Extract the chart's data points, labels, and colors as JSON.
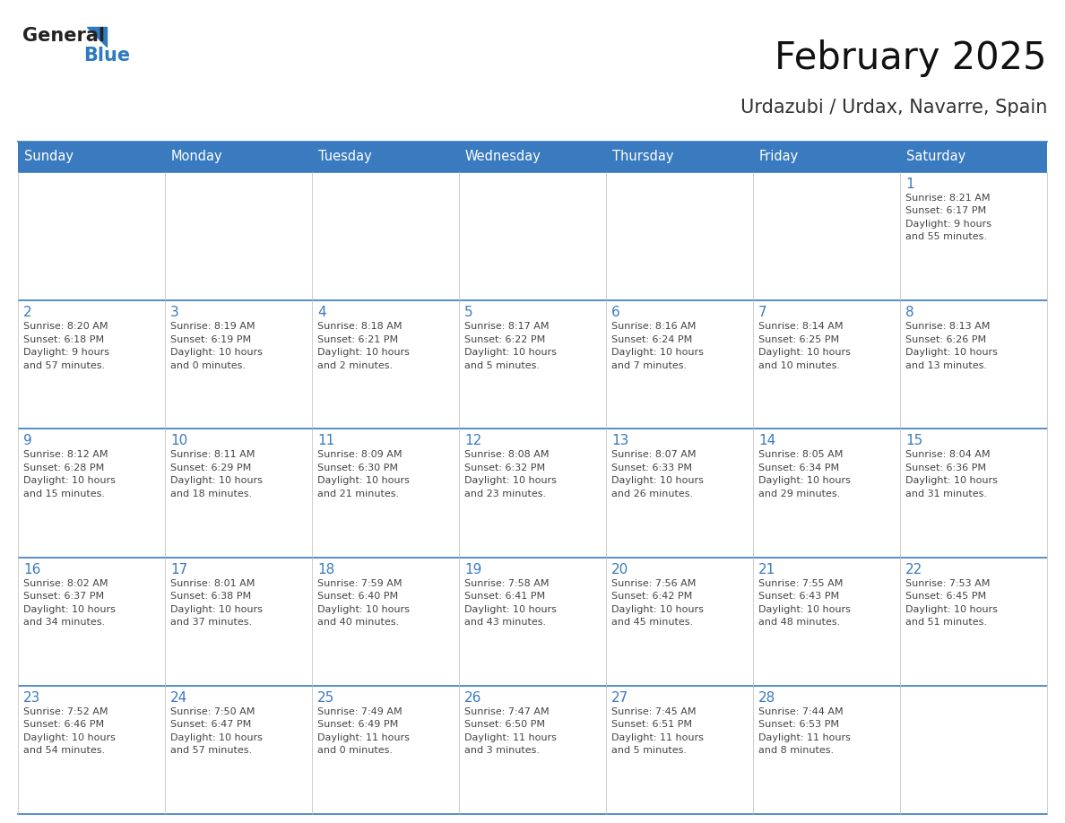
{
  "title": "February 2025",
  "subtitle": "Urdazubi / Urdax, Navarre, Spain",
  "header_bg": "#3a7abf",
  "header_text_color": "#ffffff",
  "cell_bg_white": "#ffffff",
  "border_color": "#3a7abf",
  "day_number_color": "#3a7abf",
  "text_color": "#444444",
  "days_of_week": [
    "Sunday",
    "Monday",
    "Tuesday",
    "Wednesday",
    "Thursday",
    "Friday",
    "Saturday"
  ],
  "weeks": [
    [
      {
        "day": "",
        "info": ""
      },
      {
        "day": "",
        "info": ""
      },
      {
        "day": "",
        "info": ""
      },
      {
        "day": "",
        "info": ""
      },
      {
        "day": "",
        "info": ""
      },
      {
        "day": "",
        "info": ""
      },
      {
        "day": "1",
        "info": "Sunrise: 8:21 AM\nSunset: 6:17 PM\nDaylight: 9 hours\nand 55 minutes."
      }
    ],
    [
      {
        "day": "2",
        "info": "Sunrise: 8:20 AM\nSunset: 6:18 PM\nDaylight: 9 hours\nand 57 minutes."
      },
      {
        "day": "3",
        "info": "Sunrise: 8:19 AM\nSunset: 6:19 PM\nDaylight: 10 hours\nand 0 minutes."
      },
      {
        "day": "4",
        "info": "Sunrise: 8:18 AM\nSunset: 6:21 PM\nDaylight: 10 hours\nand 2 minutes."
      },
      {
        "day": "5",
        "info": "Sunrise: 8:17 AM\nSunset: 6:22 PM\nDaylight: 10 hours\nand 5 minutes."
      },
      {
        "day": "6",
        "info": "Sunrise: 8:16 AM\nSunset: 6:24 PM\nDaylight: 10 hours\nand 7 minutes."
      },
      {
        "day": "7",
        "info": "Sunrise: 8:14 AM\nSunset: 6:25 PM\nDaylight: 10 hours\nand 10 minutes."
      },
      {
        "day": "8",
        "info": "Sunrise: 8:13 AM\nSunset: 6:26 PM\nDaylight: 10 hours\nand 13 minutes."
      }
    ],
    [
      {
        "day": "9",
        "info": "Sunrise: 8:12 AM\nSunset: 6:28 PM\nDaylight: 10 hours\nand 15 minutes."
      },
      {
        "day": "10",
        "info": "Sunrise: 8:11 AM\nSunset: 6:29 PM\nDaylight: 10 hours\nand 18 minutes."
      },
      {
        "day": "11",
        "info": "Sunrise: 8:09 AM\nSunset: 6:30 PM\nDaylight: 10 hours\nand 21 minutes."
      },
      {
        "day": "12",
        "info": "Sunrise: 8:08 AM\nSunset: 6:32 PM\nDaylight: 10 hours\nand 23 minutes."
      },
      {
        "day": "13",
        "info": "Sunrise: 8:07 AM\nSunset: 6:33 PM\nDaylight: 10 hours\nand 26 minutes."
      },
      {
        "day": "14",
        "info": "Sunrise: 8:05 AM\nSunset: 6:34 PM\nDaylight: 10 hours\nand 29 minutes."
      },
      {
        "day": "15",
        "info": "Sunrise: 8:04 AM\nSunset: 6:36 PM\nDaylight: 10 hours\nand 31 minutes."
      }
    ],
    [
      {
        "day": "16",
        "info": "Sunrise: 8:02 AM\nSunset: 6:37 PM\nDaylight: 10 hours\nand 34 minutes."
      },
      {
        "day": "17",
        "info": "Sunrise: 8:01 AM\nSunset: 6:38 PM\nDaylight: 10 hours\nand 37 minutes."
      },
      {
        "day": "18",
        "info": "Sunrise: 7:59 AM\nSunset: 6:40 PM\nDaylight: 10 hours\nand 40 minutes."
      },
      {
        "day": "19",
        "info": "Sunrise: 7:58 AM\nSunset: 6:41 PM\nDaylight: 10 hours\nand 43 minutes."
      },
      {
        "day": "20",
        "info": "Sunrise: 7:56 AM\nSunset: 6:42 PM\nDaylight: 10 hours\nand 45 minutes."
      },
      {
        "day": "21",
        "info": "Sunrise: 7:55 AM\nSunset: 6:43 PM\nDaylight: 10 hours\nand 48 minutes."
      },
      {
        "day": "22",
        "info": "Sunrise: 7:53 AM\nSunset: 6:45 PM\nDaylight: 10 hours\nand 51 minutes."
      }
    ],
    [
      {
        "day": "23",
        "info": "Sunrise: 7:52 AM\nSunset: 6:46 PM\nDaylight: 10 hours\nand 54 minutes."
      },
      {
        "day": "24",
        "info": "Sunrise: 7:50 AM\nSunset: 6:47 PM\nDaylight: 10 hours\nand 57 minutes."
      },
      {
        "day": "25",
        "info": "Sunrise: 7:49 AM\nSunset: 6:49 PM\nDaylight: 11 hours\nand 0 minutes."
      },
      {
        "day": "26",
        "info": "Sunrise: 7:47 AM\nSunset: 6:50 PM\nDaylight: 11 hours\nand 3 minutes."
      },
      {
        "day": "27",
        "info": "Sunrise: 7:45 AM\nSunset: 6:51 PM\nDaylight: 11 hours\nand 5 minutes."
      },
      {
        "day": "28",
        "info": "Sunrise: 7:44 AM\nSunset: 6:53 PM\nDaylight: 11 hours\nand 8 minutes."
      },
      {
        "day": "",
        "info": ""
      }
    ]
  ],
  "logo_general_color": "#222222",
  "logo_blue_color": "#2e7abf",
  "logo_triangle_color": "#2e7abf",
  "fig_width": 11.88,
  "fig_height": 9.18,
  "dpi": 100
}
